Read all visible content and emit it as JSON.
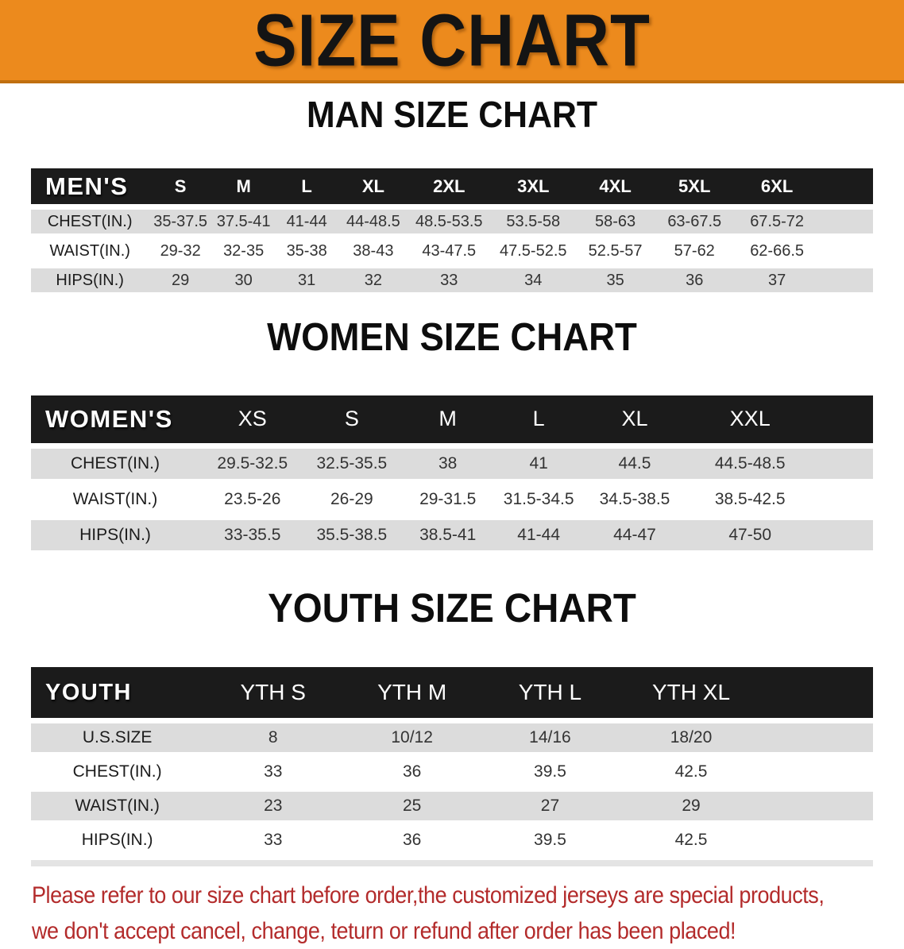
{
  "banner": {
    "title": "SIZE CHART"
  },
  "sections": [
    {
      "heading": "MAN SIZE CHART",
      "label": "MEN'S",
      "sizes": [
        "S",
        "M",
        "L",
        "XL",
        "2XL",
        "3XL",
        "4XL",
        "5XL",
        "6XL"
      ],
      "rows": [
        {
          "label": "CHEST(IN.)",
          "values": [
            "35-37.5",
            "37.5-41",
            "41-44",
            "44-48.5",
            "48.5-53.5",
            "53.5-58",
            "58-63",
            "63-67.5",
            "67.5-72"
          ]
        },
        {
          "label": "WAIST(IN.)",
          "values": [
            "29-32",
            "32-35",
            "35-38",
            "38-43",
            "43-47.5",
            "47.5-52.5",
            "52.5-57",
            "57-62",
            "62-66.5"
          ]
        },
        {
          "label": "HIPS(IN.)",
          "values": [
            "29",
            "30",
            "31",
            "32",
            "33",
            "34",
            "35",
            "36",
            "37"
          ]
        }
      ]
    },
    {
      "heading": "WOMEN SIZE CHART",
      "label": "WOMEN'S",
      "sizes": [
        "XS",
        "S",
        "M",
        "L",
        "XL",
        "XXL"
      ],
      "rows": [
        {
          "label": "CHEST(IN.)",
          "values": [
            "29.5-32.5",
            "32.5-35.5",
            "38",
            "41",
            "44.5",
            "44.5-48.5"
          ]
        },
        {
          "label": "WAIST(IN.)",
          "values": [
            "23.5-26",
            "26-29",
            "29-31.5",
            "31.5-34.5",
            "34.5-38.5",
            "38.5-42.5"
          ]
        },
        {
          "label": "HIPS(IN.)",
          "values": [
            "33-35.5",
            "35.5-38.5",
            "38.5-41",
            "41-44",
            "44-47",
            "47-50"
          ]
        }
      ]
    },
    {
      "heading": "YOUTH SIZE CHART",
      "label": "YOUTH",
      "sizes": [
        "YTH S",
        "YTH M",
        "YTH L",
        "YTH XL"
      ],
      "rows": [
        {
          "label": "U.S.SIZE",
          "values": [
            "8",
            "10/12",
            "14/16",
            "18/20"
          ]
        },
        {
          "label": "CHEST(IN.)",
          "values": [
            "33",
            "36",
            "39.5",
            "42.5"
          ]
        },
        {
          "label": "WAIST(IN.)",
          "values": [
            "23",
            "25",
            "27",
            "29"
          ]
        },
        {
          "label": "HIPS(IN.)",
          "values": [
            "33",
            "36",
            "39.5",
            "42.5"
          ]
        }
      ]
    }
  ],
  "disclaimer": {
    "line1": "Please refer to our size chart before order,the customized jerseys are special products,",
    "line2": "we don't accept cancel, change, teturn or refund after order has been placed!"
  },
  "colors": {
    "banner_bg": "#ec8a1d",
    "banner_edge": "#c06f10",
    "header_bg": "#1b1b1b",
    "header_text": "#ffffff",
    "stripe": "#dcdcdc",
    "body_text": "#333333",
    "disclaimer_text": "#b32b2b"
  }
}
